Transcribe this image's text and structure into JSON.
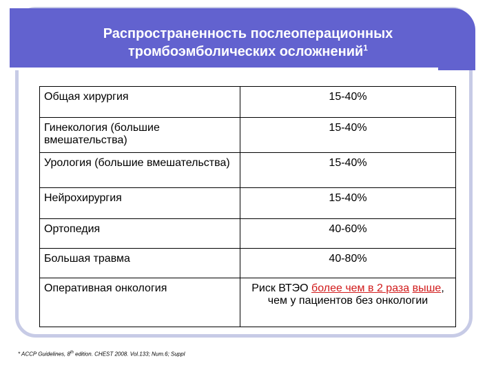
{
  "slide": {
    "title_line1": "Распространенность послеоперационных",
    "title_line2": "тромбоэмболических осложнений",
    "title_sup": "1",
    "colors": {
      "header": "#6262cf",
      "frame": "#c7cbe6",
      "highlight": "#d11a1a"
    }
  },
  "table": {
    "rows": [
      {
        "category": "Общая  хирургия",
        "value": "15-40%"
      },
      {
        "category": "Гинекология (большие вмешательства)",
        "value": "15-40%"
      },
      {
        "category": "Урология (большие вмешательства)",
        "value": "15-40%"
      },
      {
        "category": "Нейрохирургия",
        "value": "15-40%"
      },
      {
        "category": "Ортопедия",
        "value": "40-60%"
      },
      {
        "category": "Большая травма",
        "value": "40-80%"
      },
      {
        "category": "Оперативная  онкология",
        "value_prefix": "Риск ВТЭО  ",
        "value_highlight_1": "более чем в 2 раза",
        "value_highlight_2": "выше",
        "value_suffix": ", чем у пациентов без онкологии"
      }
    ]
  },
  "footnote": {
    "prefix": "* ACCP Guidelines, 8",
    "sup": "th",
    "suffix": " edition. CHEST 2008. Vol.133; Num.6; Suppl"
  }
}
